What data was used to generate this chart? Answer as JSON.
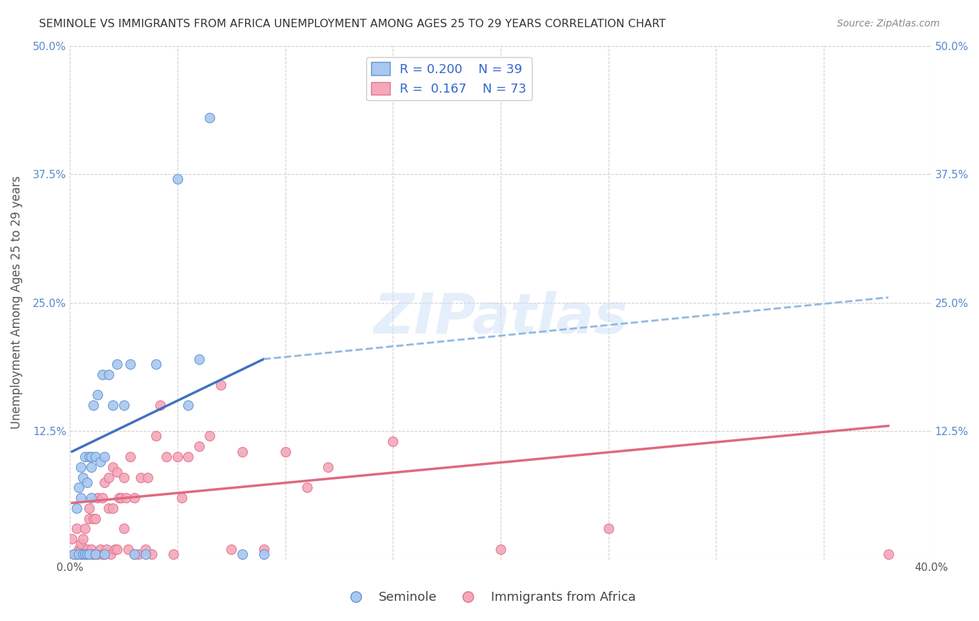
{
  "title": "SEMINOLE VS IMMIGRANTS FROM AFRICA UNEMPLOYMENT AMONG AGES 25 TO 29 YEARS CORRELATION CHART",
  "source": "Source: ZipAtlas.com",
  "ylabel": "Unemployment Among Ages 25 to 29 years",
  "xlim": [
    0.0,
    0.4
  ],
  "ylim": [
    0.0,
    0.5
  ],
  "xticks": [
    0.0,
    0.05,
    0.1,
    0.15,
    0.2,
    0.25,
    0.3,
    0.35,
    0.4
  ],
  "xticklabels": [
    "0.0%",
    "",
    "",
    "",
    "",
    "",
    "",
    "",
    "40.0%"
  ],
  "yticks": [
    0.0,
    0.125,
    0.25,
    0.375,
    0.5
  ],
  "yticklabels": [
    "",
    "12.5%",
    "25.0%",
    "37.5%",
    "50.0%"
  ],
  "seminole_color": "#a8c8f0",
  "africa_color": "#f4a8b8",
  "seminole_edge": "#6090d0",
  "africa_edge": "#e07090",
  "trend_seminole_solid_color": "#4070c0",
  "trend_seminole_dash_color": "#90b8e0",
  "trend_africa_color": "#e06880",
  "grid_color": "#d0d0d0",
  "watermark_text": "ZIPatlas",
  "legend_line1": "R = 0.200",
  "legend_n1": "N = 39",
  "legend_line2": "R =  0.167",
  "legend_n2": "N = 73",
  "seminole_label": "Seminole",
  "africa_label": "Immigrants from Africa",
  "seminole_x": [
    0.002,
    0.003,
    0.004,
    0.004,
    0.005,
    0.005,
    0.006,
    0.006,
    0.007,
    0.007,
    0.008,
    0.008,
    0.009,
    0.009,
    0.01,
    0.01,
    0.01,
    0.011,
    0.012,
    0.012,
    0.013,
    0.014,
    0.015,
    0.016,
    0.016,
    0.018,
    0.02,
    0.022,
    0.025,
    0.028,
    0.03,
    0.035,
    0.04,
    0.05,
    0.055,
    0.06,
    0.065,
    0.08,
    0.09
  ],
  "seminole_y": [
    0.005,
    0.05,
    0.005,
    0.07,
    0.06,
    0.09,
    0.005,
    0.08,
    0.005,
    0.1,
    0.005,
    0.075,
    0.1,
    0.005,
    0.09,
    0.06,
    0.1,
    0.15,
    0.005,
    0.1,
    0.16,
    0.095,
    0.18,
    0.005,
    0.1,
    0.18,
    0.15,
    0.19,
    0.15,
    0.19,
    0.005,
    0.005,
    0.19,
    0.37,
    0.15,
    0.195,
    0.43,
    0.005,
    0.005
  ],
  "africa_x": [
    0.001,
    0.002,
    0.003,
    0.003,
    0.004,
    0.004,
    0.005,
    0.005,
    0.005,
    0.006,
    0.006,
    0.007,
    0.007,
    0.008,
    0.008,
    0.009,
    0.009,
    0.01,
    0.01,
    0.011,
    0.011,
    0.012,
    0.012,
    0.013,
    0.013,
    0.014,
    0.015,
    0.015,
    0.016,
    0.016,
    0.017,
    0.018,
    0.018,
    0.019,
    0.02,
    0.02,
    0.021,
    0.022,
    0.022,
    0.023,
    0.024,
    0.025,
    0.025,
    0.026,
    0.027,
    0.028,
    0.03,
    0.03,
    0.032,
    0.033,
    0.035,
    0.036,
    0.038,
    0.04,
    0.042,
    0.045,
    0.048,
    0.05,
    0.052,
    0.055,
    0.06,
    0.065,
    0.07,
    0.075,
    0.08,
    0.09,
    0.1,
    0.11,
    0.12,
    0.15,
    0.2,
    0.25,
    0.38
  ],
  "africa_y": [
    0.02,
    0.005,
    0.005,
    0.03,
    0.005,
    0.01,
    0.005,
    0.01,
    0.015,
    0.005,
    0.02,
    0.005,
    0.03,
    0.005,
    0.01,
    0.04,
    0.05,
    0.005,
    0.01,
    0.005,
    0.04,
    0.005,
    0.04,
    0.06,
    0.005,
    0.01,
    0.005,
    0.06,
    0.075,
    0.005,
    0.01,
    0.08,
    0.05,
    0.005,
    0.09,
    0.05,
    0.01,
    0.085,
    0.01,
    0.06,
    0.06,
    0.08,
    0.03,
    0.06,
    0.01,
    0.1,
    0.06,
    0.005,
    0.005,
    0.08,
    0.01,
    0.08,
    0.005,
    0.12,
    0.15,
    0.1,
    0.005,
    0.1,
    0.06,
    0.1,
    0.11,
    0.12,
    0.17,
    0.01,
    0.105,
    0.01,
    0.105,
    0.07,
    0.09,
    0.115,
    0.01,
    0.03,
    0.005
  ],
  "trend_sem_x_start": 0.001,
  "trend_sem_x_solid_end": 0.09,
  "trend_sem_x_dash_end": 0.38,
  "trend_sem_y_start": 0.105,
  "trend_sem_y_solid_end": 0.195,
  "trend_sem_y_dash_end": 0.255,
  "trend_afr_x_start": 0.001,
  "trend_afr_x_end": 0.38,
  "trend_afr_y_start": 0.055,
  "trend_afr_y_end": 0.13
}
